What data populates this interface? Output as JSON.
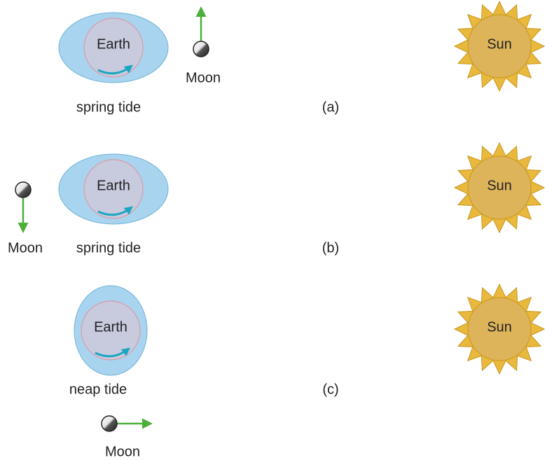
{
  "panels": [
    {
      "earth": "Earth",
      "tide": "spring tide",
      "moon": "Moon",
      "sun": "Sun",
      "label": "(a)"
    },
    {
      "earth": "Earth",
      "tide": "spring tide",
      "moon": "Moon",
      "sun": "Sun",
      "label": "(b)"
    },
    {
      "earth": "Earth",
      "tide": "neap tide",
      "moon": "Moon",
      "sun": "Sun",
      "label": "(c)"
    }
  ]
}
